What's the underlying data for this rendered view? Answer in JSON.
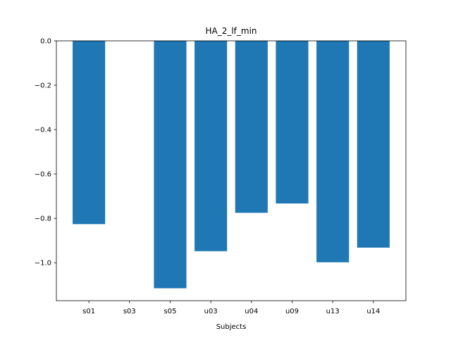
{
  "chart_data": {
    "type": "bar",
    "title": "HA_2_lf_min",
    "xlabel": "Subjects",
    "ylabel": "",
    "categories": [
      "s01",
      "s03",
      "s05",
      "u03",
      "u04",
      "u09",
      "u13",
      "u14"
    ],
    "values": [
      -0.826,
      0.0,
      -1.115,
      -0.948,
      -0.775,
      -0.733,
      -0.998,
      -0.932
    ],
    "ylim": [
      -1.171,
      0.0
    ],
    "yticks": [
      0.0,
      -0.2,
      -0.4,
      -0.6,
      -0.8,
      -1.0
    ],
    "ytick_labels": [
      "0.0",
      "−0.2",
      "−0.4",
      "−0.6",
      "−0.8",
      "−1.0"
    ],
    "grid": false,
    "colors": {
      "bar": "#1f77b4",
      "axis": "#000000",
      "background": "#ffffff"
    }
  }
}
